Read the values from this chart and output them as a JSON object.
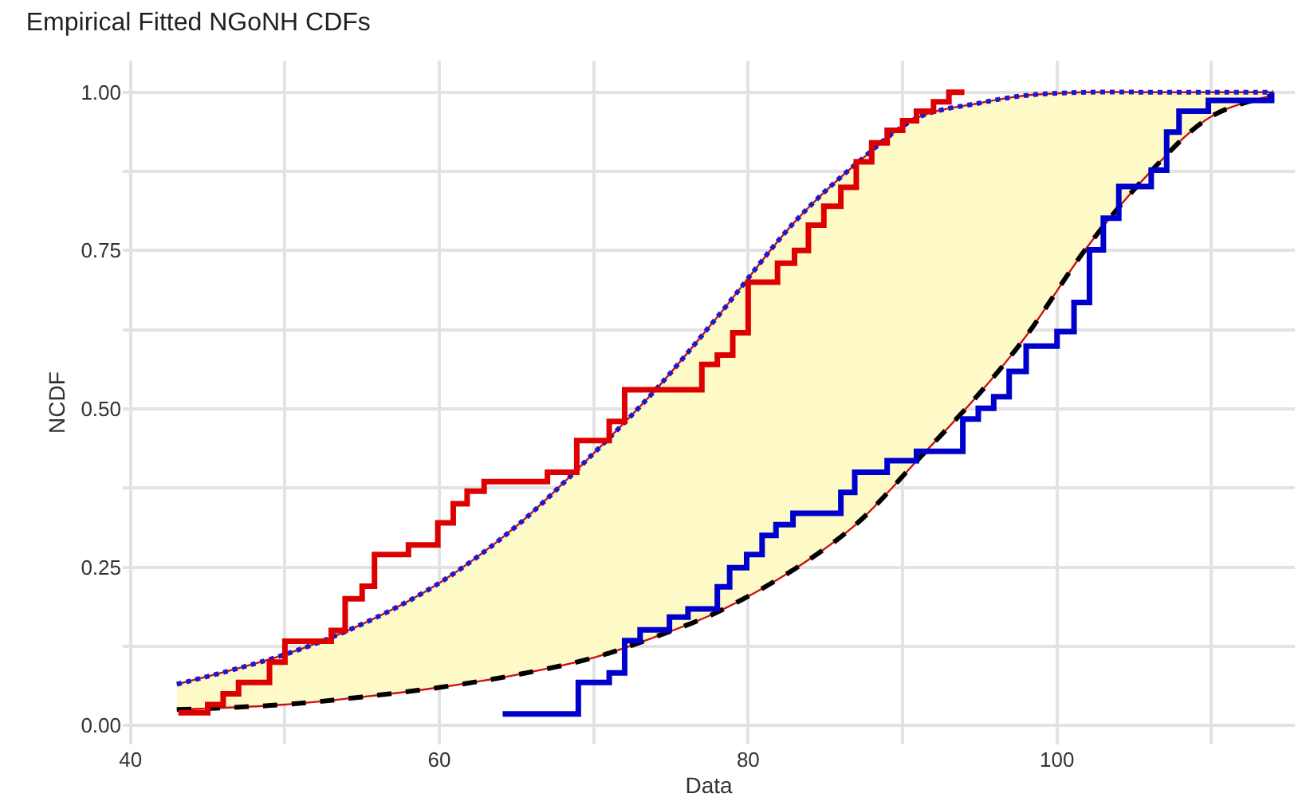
{
  "chart_data": {
    "type": "line",
    "title": "Empirical Fitted NGoNH CDFs",
    "xlabel": "Data",
    "ylabel": "NCDF",
    "xlim": [
      39.5,
      115.4
    ],
    "ylim": [
      -0.03,
      1.05
    ],
    "xticks": [
      40,
      {
        "value": 50,
        "label": null
      },
      60,
      {
        "value": 70,
        "label": null
      },
      80,
      {
        "value": 90,
        "label": null
      },
      100,
      {
        "value": 110,
        "label": null
      }
    ],
    "yticks": [
      {
        "value": 0,
        "label": "0.00"
      },
      {
        "value": 0.125,
        "label": null
      },
      {
        "value": 0.25,
        "label": "0.25"
      },
      {
        "value": 0.375,
        "label": null
      },
      {
        "value": 0.5,
        "label": "0.50"
      },
      {
        "value": 0.625,
        "label": null
      },
      {
        "value": 0.75,
        "label": "0.75"
      },
      {
        "value": 0.875,
        "label": null
      },
      {
        "value": 1,
        "label": "1.00"
      }
    ],
    "grid": true,
    "series": [
      {
        "color": "#cc1111",
        "line_style": "solid",
        "x": [
          43,
          50,
          55,
          60,
          65,
          70,
          74,
          78,
          83,
          87,
          91,
          95,
          98,
          102,
          106,
          110,
          114
        ],
        "values": [
          0.065,
          0.112,
          0.16,
          0.225,
          0.315,
          0.43,
          0.53,
          0.645,
          0.795,
          0.887,
          0.96,
          0.983,
          0.995,
          1.0,
          1.0,
          1.0,
          1.0
        ],
        "lower": [
          0.025,
          0.033,
          0.045,
          0.06,
          0.08,
          0.107,
          0.14,
          0.179,
          0.247,
          0.318,
          0.42,
          0.525,
          0.615,
          0.757,
          0.873,
          0.962,
          0.995
        ],
        "upper": [
          0.065,
          0.112,
          0.16,
          0.225,
          0.315,
          0.43,
          0.53,
          0.645,
          0.795,
          0.887,
          0.96,
          0.983,
          0.995,
          1.0,
          1.0,
          1.0,
          1.0
        ]
      },
      {
        "type": "line",
        "color": "#1a1acc",
        "line_style": "dotted",
        "x": [
          43,
          50,
          55,
          60,
          65,
          70,
          74,
          78,
          83,
          87,
          91,
          95,
          98,
          102,
          106,
          110,
          114
        ],
        "values": [
          0.065,
          0.112,
          0.16,
          0.225,
          0.315,
          0.43,
          0.53,
          0.645,
          0.795,
          0.887,
          0.96,
          0.983,
          0.995,
          1.0,
          1.0,
          1.0,
          1.0
        ]
      },
      {
        "type": "line",
        "color": "#cc1111",
        "line_style": "solid",
        "x": [
          43,
          50,
          55,
          60,
          65,
          70,
          74,
          78,
          83,
          87,
          91,
          95,
          98,
          102,
          106,
          110,
          114
        ],
        "values": [
          0.025,
          0.033,
          0.045,
          0.06,
          0.08,
          0.107,
          0.14,
          0.179,
          0.247,
          0.318,
          0.42,
          0.525,
          0.615,
          0.757,
          0.873,
          0.962,
          0.995
        ]
      },
      {
        "type": "line",
        "color": "#000000",
        "line_style": "dashed",
        "x": [
          43,
          50,
          55,
          60,
          65,
          70,
          74,
          78,
          83,
          87,
          91,
          95,
          98,
          102,
          106,
          110,
          114
        ],
        "values": [
          0.025,
          0.033,
          0.045,
          0.06,
          0.08,
          0.107,
          0.14,
          0.179,
          0.247,
          0.318,
          0.42,
          0.525,
          0.615,
          0.757,
          0.873,
          0.962,
          0.995
        ]
      },
      {
        "type": "step",
        "color": "#dd0000",
        "x": [
          43.1,
          45.0,
          46.0,
          47.0,
          49.0,
          50.0,
          53.0,
          53.9,
          55.0,
          55.8,
          58.0,
          59.9,
          60.9,
          61.8,
          62.9,
          67.0,
          68.9,
          71.0,
          72.0,
          77.0,
          78.0,
          79.0,
          80.0,
          81.9,
          83.0,
          83.9,
          84.9,
          86.0,
          87.0,
          88.0,
          89.0,
          90.0,
          90.9,
          92.0,
          93.0,
          94.0
        ],
        "values": [
          0.02,
          0.033,
          0.05,
          0.068,
          0.1,
          0.133,
          0.15,
          0.2,
          0.22,
          0.27,
          0.285,
          0.32,
          0.35,
          0.37,
          0.385,
          0.4,
          0.45,
          0.48,
          0.53,
          0.57,
          0.585,
          0.62,
          0.7,
          0.73,
          0.75,
          0.79,
          0.82,
          0.85,
          0.89,
          0.92,
          0.94,
          0.955,
          0.97,
          0.985,
          1.0,
          1.0
        ]
      },
      {
        "type": "step",
        "color": "#0000cc",
        "x": [
          64.1,
          69.0,
          71.0,
          72.0,
          73.0,
          74.9,
          76.1,
          78.0,
          78.8,
          79.9,
          80.9,
          81.8,
          82.9,
          86.0,
          86.9,
          89.0,
          90.9,
          93.9,
          94.9,
          95.9,
          96.9,
          98.0,
          100.0,
          101.1,
          102.1,
          103.0,
          104.0,
          106.1,
          107.1,
          107.9,
          109.8,
          113.9
        ],
        "values": [
          0.018,
          0.068,
          0.083,
          0.134,
          0.151,
          0.171,
          0.184,
          0.219,
          0.249,
          0.27,
          0.3,
          0.317,
          0.335,
          0.368,
          0.4,
          0.418,
          0.433,
          0.484,
          0.501,
          0.519,
          0.559,
          0.599,
          0.622,
          0.668,
          0.751,
          0.801,
          0.851,
          0.877,
          0.937,
          0.97,
          0.987,
          1.0
        ]
      }
    ]
  }
}
